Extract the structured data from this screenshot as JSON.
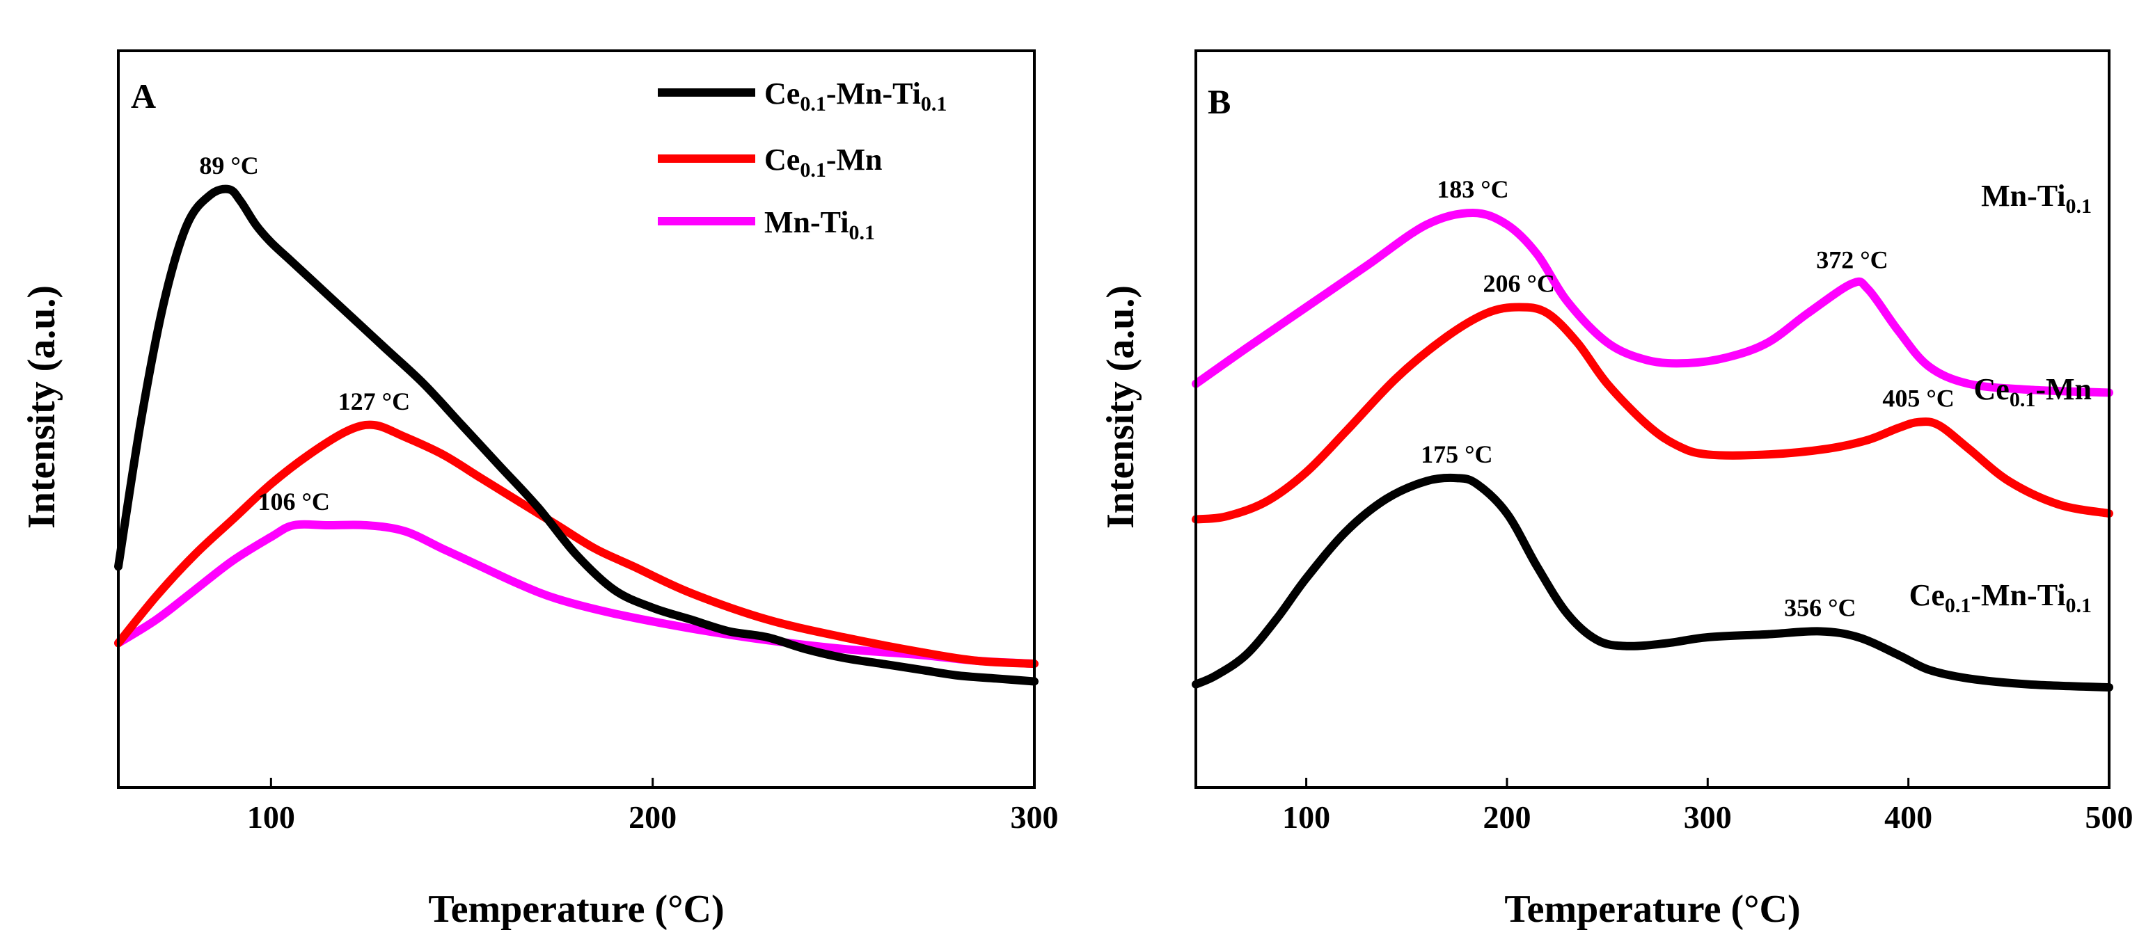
{
  "colors": {
    "black": "#000000",
    "red": "#ff0000",
    "magenta": "#ff00ff"
  },
  "chart_data": [
    {
      "type": "line",
      "panel": "A",
      "xlabel": "Temperature (°C)",
      "ylabel": "Intensity (a.u.)",
      "xlim": [
        60,
        300
      ],
      "ylim": [
        0,
        100
      ],
      "xticks": [
        "100",
        "200",
        "300"
      ],
      "yticks": "none",
      "legend_position": "top-right",
      "series": [
        {
          "name": "Ce0.1-Mn-Ti0.1",
          "legend": {
            "base": "Ce",
            "sub1": "0.1",
            "mid": "-Mn-Ti",
            "sub2": "0.1",
            "tail": ""
          },
          "color": "#000000",
          "x": [
            60,
            66,
            72,
            78,
            84,
            89,
            92,
            96,
            100,
            105,
            110,
            115,
            120,
            130,
            140,
            150,
            160,
            170,
            180,
            190,
            200,
            210,
            220,
            230,
            240,
            250,
            260,
            270,
            280,
            290,
            300
          ],
          "y": [
            25,
            50,
            70,
            83,
            88,
            89,
            87,
            83,
            80,
            77,
            74,
            71,
            68,
            62,
            56,
            49,
            42,
            35,
            27,
            21,
            18,
            16,
            14,
            13,
            11,
            9.5,
            8.5,
            7.5,
            6.5,
            6,
            5.5
          ]
        },
        {
          "name": "Ce0.1-Mn",
          "legend": {
            "base": "Ce",
            "sub1": "0.1",
            "mid": "-Mn",
            "sub2": "",
            "tail": ""
          },
          "color": "#ff0000",
          "x": [
            60,
            70,
            80,
            90,
            100,
            110,
            120,
            127,
            135,
            145,
            155,
            165,
            175,
            185,
            195,
            210,
            230,
            250,
            270,
            285,
            300
          ],
          "y": [
            12,
            20,
            27,
            33,
            39,
            44,
            48,
            49,
            47,
            44,
            40,
            36,
            32,
            28,
            25,
            20.5,
            16,
            13,
            10.5,
            9,
            8.5
          ]
        },
        {
          "name": "Mn-Ti0.1",
          "legend": {
            "base": "Mn-Ti",
            "sub1": "0.1",
            "mid": "",
            "sub2": "",
            "tail": ""
          },
          "color": "#ff00ff",
          "x": [
            60,
            70,
            80,
            90,
            100,
            106,
            115,
            125,
            135,
            145,
            155,
            165,
            175,
            190,
            210,
            230,
            250,
            270,
            285,
            300
          ],
          "y": [
            12,
            16,
            21,
            26,
            30,
            32,
            32,
            32,
            31,
            28,
            25,
            22,
            19.5,
            17,
            14.5,
            12.5,
            11,
            10,
            9,
            8.5
          ]
        }
      ],
      "annotations": [
        {
          "text": "89 °C",
          "x": 89,
          "y": 89
        },
        {
          "text": "127 °C",
          "x": 127,
          "y": 49
        },
        {
          "text": "106 °C",
          "x": 106,
          "y": 32
        }
      ]
    },
    {
      "type": "line",
      "panel": "B",
      "xlabel": "Temperature (°C)",
      "ylabel": "Intensity (a.u.)",
      "xlim": [
        45,
        500
      ],
      "ylim": [
        0,
        100
      ],
      "xticks": [
        "100",
        "200",
        "300",
        "400",
        "500"
      ],
      "yticks": "none",
      "series": [
        {
          "name": "Mn-Ti0.1",
          "label": {
            "base": "Mn-Ti",
            "sub1": "0.1",
            "mid": "",
            "sub2": "",
            "tail": ""
          },
          "color": "#ff00ff",
          "x": [
            45,
            70,
            100,
            130,
            160,
            183,
            200,
            215,
            230,
            250,
            270,
            290,
            310,
            330,
            350,
            372,
            380,
            395,
            410,
            430,
            460,
            500
          ],
          "y": [
            56,
            62,
            69,
            76,
            83,
            85,
            83,
            78,
            70,
            63,
            60,
            59.5,
            60.5,
            63,
            68,
            73,
            72,
            65,
            59,
            56,
            55,
            54.5
          ]
        },
        {
          "name": "Ce0.1-Mn",
          "label": {
            "base": "Ce",
            "sub1": "0.1",
            "mid": "-Mn",
            "sub2": "",
            "tail": ""
          },
          "color": "#ff0000",
          "x": [
            45,
            60,
            80,
            100,
            120,
            145,
            170,
            190,
            206,
            220,
            235,
            250,
            270,
            285,
            300,
            330,
            360,
            380,
            395,
            405,
            415,
            430,
            450,
            475,
            500
          ],
          "y": [
            33,
            33.5,
            36,
            41,
            48,
            57,
            64,
            68,
            69,
            68,
            63,
            56,
            49,
            45.5,
            44,
            44,
            45,
            46.5,
            48.5,
            49.5,
            49,
            45,
            39.5,
            35.5,
            34
          ]
        },
        {
          "name": "Ce0.1-Mn-Ti0.1",
          "label": {
            "base": "Ce",
            "sub1": "0.1",
            "mid": "-Mn-Ti",
            "sub2": "0.1",
            "tail": ""
          },
          "color": "#000000",
          "x": [
            45,
            55,
            70,
            85,
            100,
            120,
            140,
            160,
            175,
            185,
            200,
            215,
            230,
            245,
            260,
            280,
            300,
            330,
            356,
            375,
            395,
            410,
            430,
            460,
            500
          ],
          "y": [
            5,
            6.5,
            10,
            16,
            23,
            31,
            36.5,
            39.5,
            40,
            39,
            34,
            25,
            17,
            12.5,
            11.5,
            12,
            13,
            13.5,
            14,
            13,
            10,
            7.5,
            6,
            5,
            4.5
          ]
        }
      ],
      "annotations": [
        {
          "text": "183 °C",
          "x": 183,
          "y": 85
        },
        {
          "text": "372 °C",
          "x": 372,
          "y": 73
        },
        {
          "text": "206 °C",
          "x": 206,
          "y": 69
        },
        {
          "text": "405 °C",
          "x": 405,
          "y": 49.5
        },
        {
          "text": "175 °C",
          "x": 175,
          "y": 40
        },
        {
          "text": "356 °C",
          "x": 356,
          "y": 14
        }
      ]
    }
  ]
}
